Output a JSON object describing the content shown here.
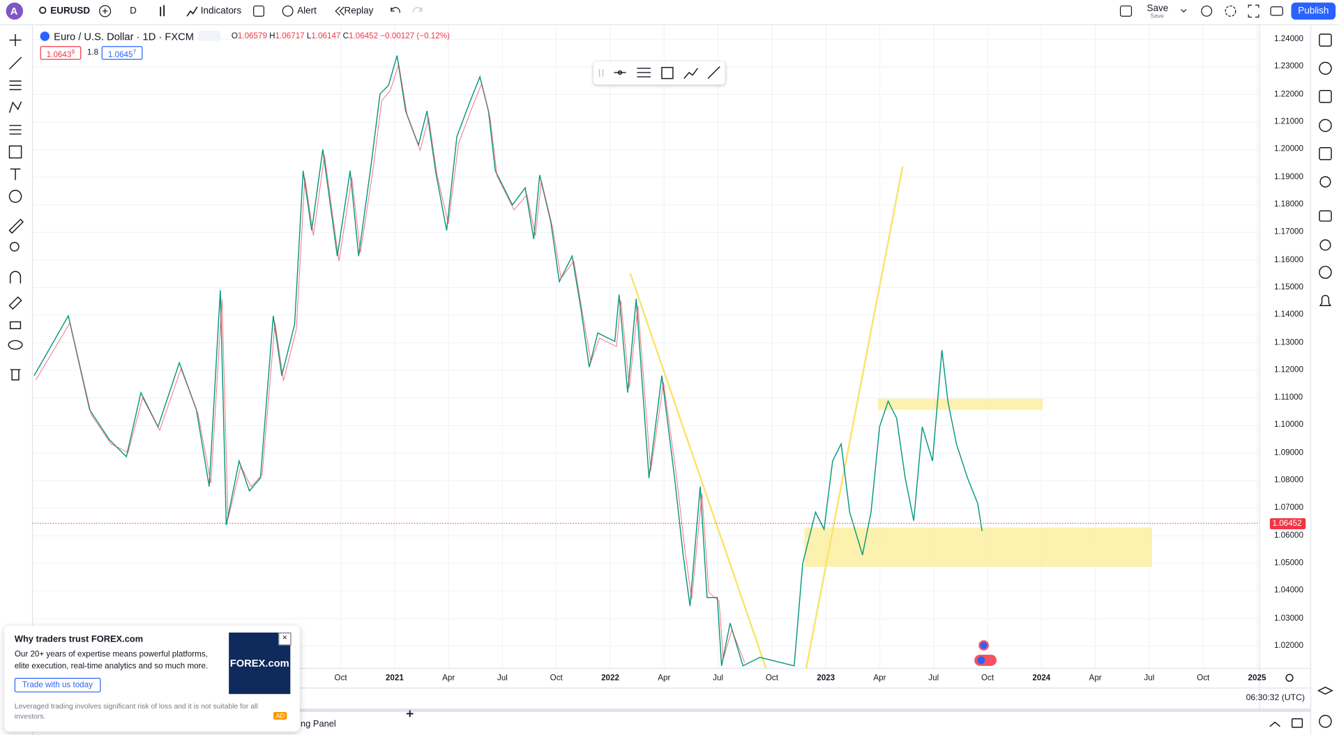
{
  "toolbar": {
    "avatar": "A",
    "symbol": "EURUSD",
    "interval": "D",
    "indicators": "Indicators",
    "alert": "Alert",
    "replay": "Replay",
    "save": "Save",
    "save_sub": "Save",
    "publish": "Publish"
  },
  "legend": {
    "title": "Euro / U.S. Dollar · 1D · FXCM",
    "ohlc": [
      {
        "label": "O",
        "value": "1.06579"
      },
      {
        "label": "H",
        "value": "1.06717"
      },
      {
        "label": "L",
        "value": "1.06147"
      },
      {
        "label": "C",
        "value": "1.06452"
      }
    ],
    "change": "−0.00127 (−0.12%)",
    "bid": {
      "main": "1.0643",
      "pip": "9"
    },
    "spread": "1.8",
    "ask": {
      "main": "1.0645",
      "pip": "7"
    }
  },
  "price_axis": {
    "ticks": [
      "1.24000",
      "1.23000",
      "1.22000",
      "1.21000",
      "1.20000",
      "1.19000",
      "1.18000",
      "1.17000",
      "1.16000",
      "1.15000",
      "1.14000",
      "1.13000",
      "1.12000",
      "1.11000",
      "1.10000",
      "1.09000",
      "1.08000",
      "1.07000",
      "1.06000",
      "1.05000",
      "1.04000",
      "1.03000",
      "1.02000"
    ],
    "last_price": "1.06452"
  },
  "time_axis": {
    "ticks": [
      "Oct",
      "2021",
      "Apr",
      "Jul",
      "Oct",
      "2022",
      "Apr",
      "Jul",
      "Oct",
      "2023",
      "Apr",
      "Jul",
      "Oct",
      "2024",
      "Apr",
      "Jul",
      "Oct",
      "2025"
    ]
  },
  "clock": "06:30:32 (UTC)",
  "ad": {
    "title": "Why traders trust FOREX.com",
    "body": "Our 20+ years of expertise means powerful platforms, elite execution, real-time analytics and so much more.",
    "button": "Trade with us today",
    "disclaimer": "Leveraged trading involves significant risk of loss and it is not suitable for all investors.",
    "badge": "AD",
    "logo": "FOREX.com"
  },
  "bottom_panel": {
    "label": "ng Panel"
  }
}
